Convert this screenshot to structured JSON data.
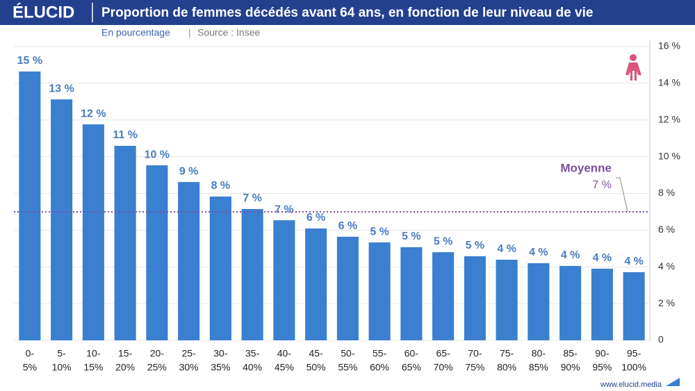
{
  "header": {
    "brand": "ÉLUCID",
    "subtitle": "En pourcentage",
    "source": "Source : Insee"
  },
  "footer": {
    "site": "www.elucid.media"
  },
  "chart_data": {
    "type": "bar",
    "title": "Proportion de femmes décédés avant 64 ans, en fonction de leur niveau de vie",
    "categories": [
      [
        "0-",
        "5%"
      ],
      [
        "5-",
        "10%"
      ],
      [
        "10-",
        "15%"
      ],
      [
        "15-",
        "20%"
      ],
      [
        "20-",
        "25%"
      ],
      [
        "25-",
        "30%"
      ],
      [
        "30-",
        "35%"
      ],
      [
        "35-",
        "40%"
      ],
      [
        "40-",
        "45%"
      ],
      [
        "45-",
        "50%"
      ],
      [
        "50-",
        "55%"
      ],
      [
        "55-",
        "60%"
      ],
      [
        "60-",
        "65%"
      ],
      [
        "65-",
        "70%"
      ],
      [
        "70-",
        "75%"
      ],
      [
        "75-",
        "80%"
      ],
      [
        "80-",
        "85%"
      ],
      [
        "85-",
        "90%"
      ],
      [
        "90-",
        "95%"
      ],
      [
        "95-",
        "100%"
      ]
    ],
    "values": [
      14.64,
      13.12,
      11.76,
      10.59,
      9.53,
      8.62,
      7.83,
      7.15,
      6.54,
      6.09,
      5.64,
      5.33,
      5.07,
      4.8,
      4.58,
      4.39,
      4.2,
      4.05,
      3.9,
      3.71
    ],
    "value_labels": [
      "15 %",
      "13 %",
      "12 %",
      "11 %",
      "10 %",
      "9 %",
      "8 %",
      "7 %",
      "7 %",
      "6 %",
      "6 %",
      "5 %",
      "5 %",
      "5 %",
      "5 %",
      "4 %",
      "4 %",
      "4 %",
      "4 %",
      "4 %"
    ],
    "color": "#3a7fd0",
    "label_color": "#4a7cc0",
    "ylim": [
      0,
      16
    ],
    "yticks": [
      0,
      {
        "value": 2,
        "label": "2 %"
      },
      {
        "value": 4,
        "label": "4 %"
      },
      {
        "value": 6,
        "label": "6 %"
      },
      {
        "value": 8,
        "label": "8 %"
      },
      {
        "value": 10,
        "label": "10 %"
      },
      {
        "value": 12,
        "label": "12 %"
      },
      {
        "value": 14,
        "label": "14 %"
      },
      {
        "value": 16,
        "label": "16 %"
      }
    ],
    "grid": true,
    "y_axis_side": "right",
    "reference_line": {
      "label": "Moyenne",
      "value": 7,
      "value_label": "7 %",
      "color": "#7b4f9e"
    }
  }
}
